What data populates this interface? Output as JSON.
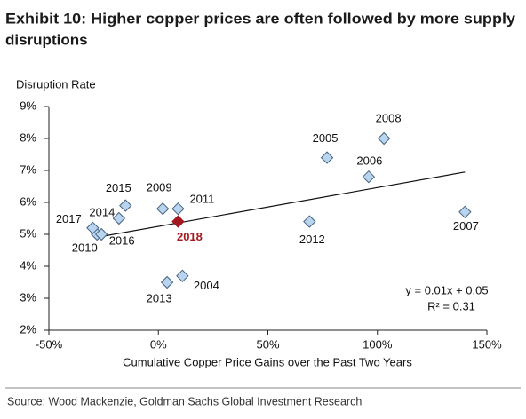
{
  "chart_data": {
    "type": "scatter",
    "title": [
      "Exhibit 10: Higher copper prices are often followed by more supply",
      "disruptions"
    ],
    "y_label": "Disruption Rate",
    "x_label": "Cumulative Copper Price Gains over the Past Two Years",
    "labels": [
      "2004",
      "2005",
      "2006",
      "2007",
      "2008",
      "2009",
      "2010",
      "2011",
      "2012",
      "2013",
      "2014",
      "2015",
      "2016",
      "2017",
      "2018"
    ],
    "x": [
      11,
      77,
      96,
      140,
      103,
      2,
      -28,
      9,
      69,
      4,
      -18,
      -15,
      -26,
      -30,
      9
    ],
    "values": [
      3.7,
      7.4,
      6.8,
      5.7,
      8.0,
      5.8,
      5.0,
      5.8,
      5.4,
      3.5,
      5.5,
      5.9,
      5.0,
      5.2,
      5.4
    ],
    "color": "#b9d4ef",
    "edge_color": "#44617f",
    "colors": [
      "#b9d4ef",
      "#b9d4ef",
      "#b9d4ef",
      "#b9d4ef",
      "#b9d4ef",
      "#b9d4ef",
      "#b9d4ef",
      "#b9d4ef",
      "#b9d4ef",
      "#b9d4ef",
      "#b9d4ef",
      "#b9d4ef",
      "#b9d4ef",
      "#b9d4ef",
      "#a3191f"
    ],
    "trendline": {
      "x": [
        -27,
        140
      ],
      "values": [
        4.92,
        6.95
      ]
    },
    "annotations": [
      "y = 0.01x + 0.05",
      "R² = 0.31"
    ],
    "xlim": [
      -50,
      150
    ],
    "ylim": [
      2,
      9
    ],
    "xticks": [
      {
        "value": -50,
        "label": "-50%"
      },
      {
        "value": 0,
        "label": "0%"
      },
      {
        "value": 50,
        "label": "50%"
      },
      {
        "value": 100,
        "label": "100%"
      },
      {
        "value": 150,
        "label": "150%"
      }
    ],
    "yticks": [
      {
        "value": 2,
        "label": "2%"
      },
      {
        "value": 3,
        "label": "3%"
      },
      {
        "value": 4,
        "label": "4%"
      },
      {
        "value": 5,
        "label": "5%"
      },
      {
        "value": 6,
        "label": "6%"
      },
      {
        "value": 7,
        "label": "7%"
      },
      {
        "value": 8,
        "label": "8%"
      },
      {
        "value": 9,
        "label": "9%"
      }
    ],
    "grid": false,
    "source": "Source: Wood Mackenzie, Goldman Sachs Global Investment Research"
  }
}
